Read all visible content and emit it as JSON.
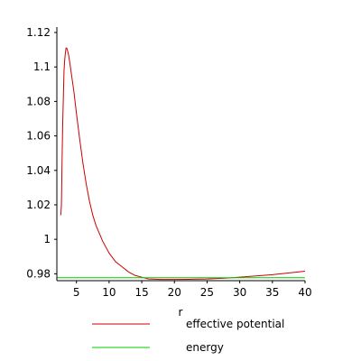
{
  "chart_data": {
    "type": "line",
    "title": "",
    "xlabel": "r",
    "ylabel": "",
    "xlim": [
      2,
      40
    ],
    "ylim": [
      0.976,
      1.12
    ],
    "x_ticks": [
      5,
      10,
      15,
      20,
      25,
      30,
      35,
      40
    ],
    "y_ticks": [
      0.98,
      1,
      1.02,
      1.04,
      1.06,
      1.08,
      1.1,
      1.12
    ],
    "x_tick_labels": [
      "5",
      "10",
      "15",
      "20",
      "25",
      "30",
      "35",
      "40"
    ],
    "y_tick_labels": [
      "0.98",
      "1",
      "1.02",
      "1.04",
      "1.06",
      "1.08",
      "1.1",
      "1.12"
    ],
    "grid": false,
    "legend_position": "bottom",
    "series": [
      {
        "name": "effective potential",
        "color": "#cc0000",
        "x": [
          2.6,
          2.7,
          2.8,
          2.9,
          3.0,
          3.1,
          3.2,
          3.3,
          3.4,
          3.5,
          3.6,
          3.8,
          4.0,
          4.3,
          4.6,
          5.0,
          5.5,
          6.0,
          6.5,
          7.0,
          7.5,
          8.0,
          9.0,
          10.0,
          11.0,
          12.0,
          13.0,
          14.0,
          15.0,
          16.0,
          18.0,
          20.0,
          22.0,
          25.0,
          28.0,
          30.0,
          35.0,
          40.0
        ],
        "y": [
          1.014,
          1.02,
          1.046,
          1.068,
          1.083,
          1.098,
          1.104,
          1.108,
          1.111,
          1.111,
          1.11,
          1.107,
          1.102,
          1.094,
          1.086,
          1.073,
          1.058,
          1.044,
          1.032,
          1.022,
          1.014,
          1.008,
          0.999,
          0.992,
          0.987,
          0.984,
          0.981,
          0.979,
          0.978,
          0.977,
          0.9767,
          0.9767,
          0.9768,
          0.977,
          0.9775,
          0.978,
          0.9795,
          0.9815
        ]
      },
      {
        "name": "energy",
        "color": "#00cc00",
        "x": [
          2,
          40
        ],
        "y": [
          0.9777,
          0.9777
        ]
      }
    ]
  }
}
